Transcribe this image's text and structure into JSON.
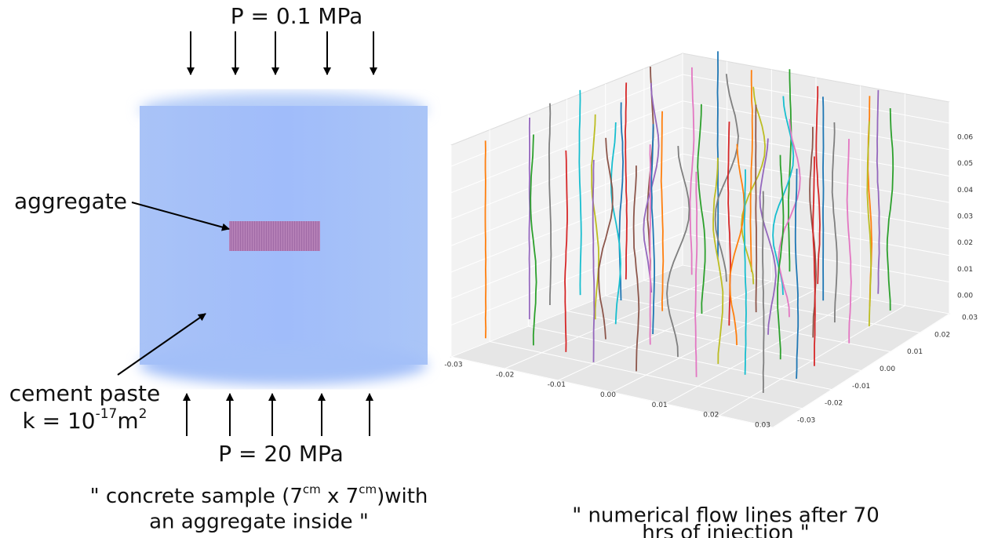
{
  "left": {
    "top_pressure": "P = 0.1 MPa",
    "bottom_pressure": "P = 20 MPa",
    "aggregate_label": "aggregate",
    "cement_label": "cement paste",
    "permeability": {
      "base": "k = 10",
      "exponent": "-17",
      "unit": "m",
      "unit_exponent": "2"
    },
    "caption": {
      "part1": "\" concrete sample (7",
      "sup1": "cm",
      "part2": " x 7",
      "sup2": "cm",
      "part3": ")with",
      "line2": "an aggregate inside \""
    }
  },
  "right": {
    "x_ticks": [
      "-0.03",
      "-0.02",
      "-0.01",
      "0.00",
      "0.01",
      "0.02",
      "0.03"
    ],
    "y_ticks": [
      "-0.03",
      "-0.02",
      "-0.01",
      "0.00",
      "0.01",
      "0.02",
      "0.03"
    ],
    "z_ticks": [
      "0.00",
      "0.01",
      "0.02",
      "0.03",
      "0.04",
      "0.05",
      "0.06"
    ],
    "caption": {
      "line1": "\" numerical flow lines after 70",
      "line2": "hrs of injection \""
    }
  }
}
